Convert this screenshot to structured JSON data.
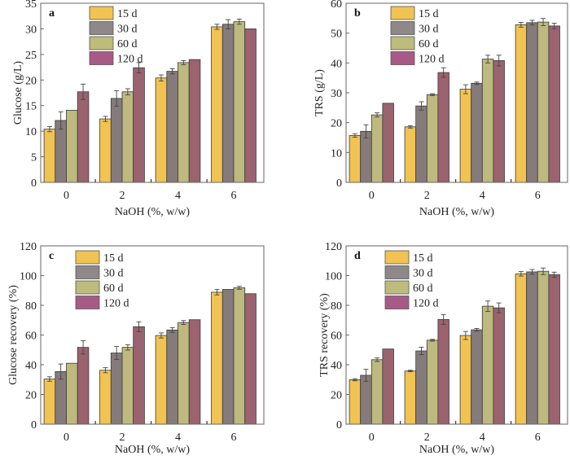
{
  "figure": {
    "series_colors": {
      "15 d": "#f0c352",
      "30 d": "#867b7b",
      "60 d": "#bdb97f",
      "120 d": "#9b6270"
    },
    "legend_colors": {
      "15 d": "#f0c352",
      "30 d": "#8e8888",
      "60 d": "#bdbc7c",
      "120 d": "#a85a86"
    }
  },
  "chart_data": [
    {
      "panel": "a",
      "type": "bar",
      "title": "",
      "xlabel": "NaOH (%, w/w)",
      "ylabel": "Glucose (g/L)",
      "categories": [
        "0",
        "2",
        "4",
        "6"
      ],
      "ylim": [
        0,
        35
      ],
      "yticks": [
        0,
        5,
        10,
        15,
        20,
        25,
        30,
        35
      ],
      "grid": false,
      "legend": "top-left",
      "series": [
        {
          "name": "15 d",
          "values": [
            10.4,
            12.4,
            20.4,
            30.4
          ],
          "errors": [
            0.5,
            0.5,
            0.6,
            0.5
          ]
        },
        {
          "name": "30 d",
          "values": [
            12.1,
            16.4,
            21.7,
            30.9
          ],
          "errors": [
            1.7,
            1.5,
            0.5,
            0.9
          ]
        },
        {
          "name": "60 d",
          "values": [
            14.1,
            17.7,
            23.4,
            31.4
          ],
          "errors": [
            0.0,
            0.6,
            0.4,
            0.5
          ]
        },
        {
          "name": "120 d",
          "values": [
            17.7,
            22.4,
            24.0,
            30.0
          ],
          "errors": [
            1.5,
            1.0,
            0.0,
            0.0
          ]
        }
      ]
    },
    {
      "panel": "b",
      "type": "bar",
      "title": "",
      "xlabel": "NaOH (%, w/w)",
      "ylabel": "TRS (g/L)",
      "categories": [
        "0",
        "2",
        "4",
        "6"
      ],
      "ylim": [
        0,
        60
      ],
      "yticks": [
        0,
        10,
        20,
        30,
        40,
        50,
        60
      ],
      "grid": false,
      "legend": "top-left",
      "series": [
        {
          "name": "15 d",
          "values": [
            15.7,
            18.6,
            31.2,
            52.8
          ],
          "errors": [
            0.6,
            0.4,
            1.5,
            0.8
          ]
        },
        {
          "name": "30 d",
          "values": [
            17.1,
            25.6,
            33.2,
            53.5
          ],
          "errors": [
            2.2,
            1.4,
            0.4,
            0.8
          ]
        },
        {
          "name": "60 d",
          "values": [
            22.6,
            29.4,
            41.3,
            53.7
          ],
          "errors": [
            0.7,
            0.3,
            1.3,
            1.2
          ]
        },
        {
          "name": "120 d",
          "values": [
            26.5,
            36.8,
            40.8,
            52.4
          ],
          "errors": [
            0.0,
            1.6,
            1.8,
            0.9
          ]
        }
      ]
    },
    {
      "panel": "c",
      "type": "bar",
      "title": "",
      "xlabel": "NaOH (%, w/w)",
      "ylabel": "Glucose recovery (%)",
      "categories": [
        "0",
        "2",
        "4",
        "6"
      ],
      "ylim": [
        0,
        120
      ],
      "yticks": [
        0,
        20,
        40,
        60,
        80,
        100,
        120
      ],
      "grid": false,
      "legend": "top-left",
      "series": [
        {
          "name": "15 d",
          "values": [
            30.4,
            36.3,
            59.7,
            88.8
          ],
          "errors": [
            1.5,
            1.7,
            1.7,
            1.8
          ]
        },
        {
          "name": "30 d",
          "values": [
            35.4,
            47.9,
            63.4,
            90.7
          ],
          "errors": [
            5.1,
            4.4,
            1.6,
            0.0
          ]
        },
        {
          "name": "60 d",
          "values": [
            41.0,
            51.7,
            68.4,
            91.8
          ],
          "errors": [
            0.0,
            1.8,
            1.3,
            1.0
          ]
        },
        {
          "name": "120 d",
          "values": [
            51.7,
            65.6,
            70.3,
            87.8
          ],
          "errors": [
            4.5,
            3.3,
            0.0,
            0.0
          ]
        }
      ]
    },
    {
      "panel": "d",
      "type": "bar",
      "title": "",
      "xlabel": "NaOH (%, w/w)",
      "ylabel": "TRS recovery (%)",
      "categories": [
        "0",
        "2",
        "4",
        "6"
      ],
      "ylim": [
        0,
        120
      ],
      "yticks": [
        0,
        20,
        40,
        60,
        80,
        100,
        120
      ],
      "grid": false,
      "legend": "top-left",
      "series": [
        {
          "name": "15 d",
          "values": [
            29.9,
            35.8,
            59.7,
            101.2
          ],
          "errors": [
            0.7,
            0.5,
            2.7,
            1.5
          ]
        },
        {
          "name": "30 d",
          "values": [
            32.9,
            49.3,
            63.5,
            102.5
          ],
          "errors": [
            4.0,
            2.5,
            0.9,
            1.6
          ]
        },
        {
          "name": "60 d",
          "values": [
            43.4,
            56.5,
            79.4,
            102.9
          ],
          "errors": [
            1.2,
            0.6,
            3.5,
            2.2
          ]
        },
        {
          "name": "120 d",
          "values": [
            50.6,
            70.5,
            78.3,
            100.6
          ],
          "errors": [
            0.0,
            3.3,
            3.3,
            1.7
          ]
        }
      ]
    }
  ]
}
